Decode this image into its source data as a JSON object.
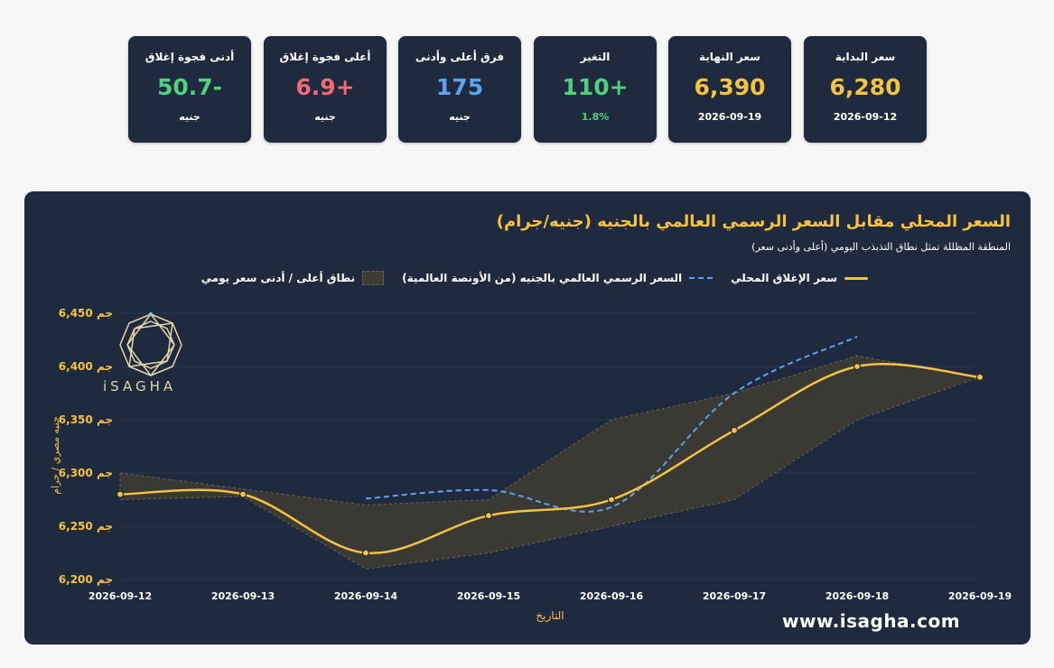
{
  "cards": [
    {
      "label": "سعر البداية",
      "value": "6,280",
      "sub": "2026-09-12",
      "value_color": "#f5c242",
      "sub_color": "#ffffff"
    },
    {
      "label": "سعر النهاية",
      "value": "6,390",
      "sub": "2026-09-19",
      "value_color": "#f5c242",
      "sub_color": "#ffffff"
    },
    {
      "label": "التغير",
      "value": "110+",
      "sub": "1.8%",
      "value_color": "#4fd07d",
      "sub_color": "#4fd07d"
    },
    {
      "label": "فرق أعلى وأدنى",
      "value": "175",
      "sub": "جنيه",
      "value_color": "#5da3f0",
      "sub_color": "#ffffff"
    },
    {
      "label": "أعلى فجوة إغلاق",
      "value": "6.9+",
      "sub": "جنيه",
      "value_color": "#f06b74",
      "sub_color": "#ffffff"
    },
    {
      "label": "أدنى فجوة إغلاق",
      "value": "50.7-",
      "sub": "جنيه",
      "value_color": "#4fd07d",
      "sub_color": "#ffffff"
    }
  ],
  "chart_data": {
    "type": "line",
    "title": "السعر المحلي مقابل السعر الرسمي العالمي بالجنيه (جنيه/جرام)",
    "subtitle": "المنطقة المظللة تمثل نطاق التذبذب اليومي (أعلى وأدنى سعر)",
    "xlabel": "التاريخ",
    "ylabel": "جنيه مصري / جرام",
    "y_tick_suffix": " جم",
    "ylim": [
      6200,
      6450
    ],
    "yticks": [
      6200,
      6250,
      6300,
      6350,
      6400,
      6450
    ],
    "y_tick_labels": [
      "6,200",
      "6,250",
      "6,300",
      "6,350",
      "6,400",
      "6,450"
    ],
    "categories": [
      "2026-09-12",
      "2026-09-13",
      "2026-09-14",
      "2026-09-15",
      "2026-09-16",
      "2026-09-17",
      "2026-09-18",
      "2026-09-19"
    ],
    "legend_position": "top",
    "series": [
      {
        "name": "سعر الإغلاق المحلي",
        "color": "#f5c242",
        "style": "solid",
        "values": [
          6280,
          6280,
          6225,
          6260,
          6275,
          6340,
          6400,
          6390
        ]
      },
      {
        "name": "السعر الرسمي العالمي بالجنيه (من الأونصة العالمية)",
        "color": "#5da3f0",
        "style": "dashed",
        "values": [
          null,
          null,
          6276,
          6284,
          6268,
          6375,
          6428,
          null
        ]
      }
    ],
    "band": {
      "name": "نطاق أعلى / أدنى سعر يومي",
      "color": "#3d3b32",
      "high": [
        6300,
        6285,
        6270,
        6275,
        6350,
        6375,
        6410,
        6390
      ],
      "low": [
        6275,
        6278,
        6210,
        6225,
        6250,
        6275,
        6350,
        6390
      ]
    }
  },
  "brand": {
    "logo_text": "iSAGHA",
    "website": "www.isagha.com"
  }
}
